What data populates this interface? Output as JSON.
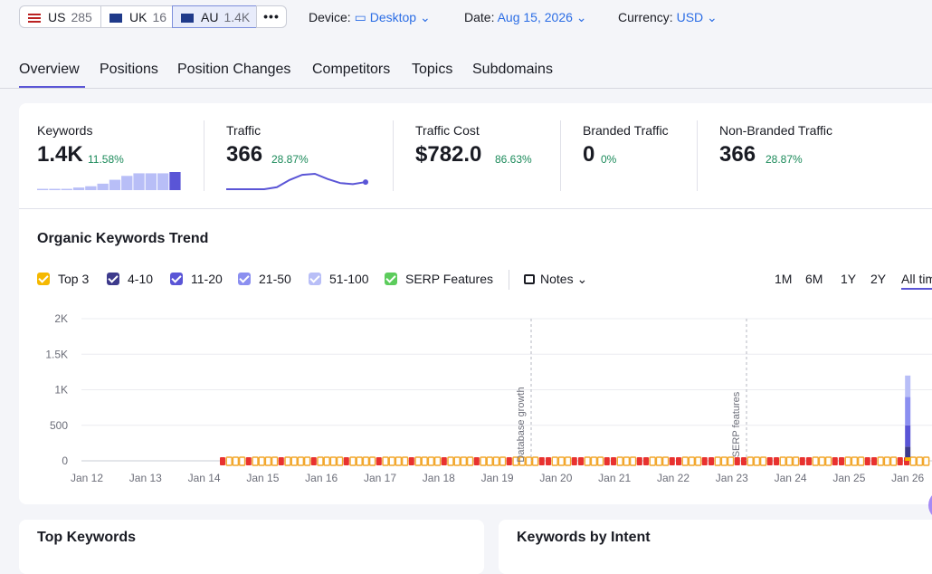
{
  "country_tabs": [
    {
      "code": "US",
      "count": "285"
    },
    {
      "code": "UK",
      "count": "16"
    },
    {
      "code": "AU",
      "count": "1.4K"
    }
  ],
  "filters": [
    {
      "label": "Device:",
      "value": "Desktop"
    },
    {
      "label": "Date:",
      "value": "Aug 15, 2026"
    },
    {
      "label": "Currency:",
      "value": "USD"
    }
  ],
  "nav_tabs": [
    "Overview",
    "Positions",
    "Position Changes",
    "Competitors",
    "Topics",
    "Subdomains"
  ],
  "metrics": [
    {
      "label": "Keywords",
      "value": "1.4K",
      "change": "11.58%",
      "sparkline": [
        1,
        1,
        1,
        2,
        3,
        5,
        8,
        11,
        13,
        13,
        13,
        14
      ]
    },
    {
      "label": "Traffic",
      "value": "366",
      "change": "28.87%",
      "sparkline": [
        0,
        0,
        0,
        0,
        2,
        9,
        14,
        15,
        10,
        6,
        5,
        7
      ]
    },
    {
      "label": "Traffic Cost",
      "value": "$782.0",
      "change": "86.63%"
    },
    {
      "label": "Branded Traffic",
      "value": "0",
      "change": "0%"
    },
    {
      "label": "Non-Branded Traffic",
      "value": "366",
      "change": "28.87%"
    }
  ],
  "chart_data": {
    "type": "stacked_bar",
    "title": "Organic Keywords Trend",
    "notes_label": "Notes",
    "ranges": [
      "1M",
      "6M",
      "1Y",
      "2Y",
      "All time"
    ],
    "legend_extra": {
      "name": "SERP Features",
      "color": "#5ccc5c"
    },
    "annotations": [
      "Database growth",
      "SERP features"
    ],
    "categories": [
      "Jan 12",
      "Jan 13",
      "Jan 14",
      "Jan 15",
      "Jan 16",
      "Jan 17",
      "Jan 18",
      "Jan 19",
      "Jan 20",
      "Jan 21",
      "Jan 22",
      "Jan 23",
      "Jan 24",
      "Jan 25",
      "Jan 26"
    ],
    "series": [
      {
        "name": "Top 3",
        "color": "#f5b800",
        "values": [
          0,
          0,
          0,
          0,
          0,
          0,
          0,
          0,
          0,
          0,
          0,
          0,
          0,
          0,
          50
        ]
      },
      {
        "name": "4-10",
        "color": "#3d3a8c",
        "values": [
          0,
          0,
          0,
          0,
          0,
          0,
          0,
          0,
          0,
          0,
          0,
          0,
          0,
          0,
          150
        ]
      },
      {
        "name": "11-20",
        "color": "#5a55d6",
        "values": [
          0,
          0,
          0,
          0,
          0,
          0,
          0,
          0,
          0,
          0,
          0,
          0,
          0,
          0,
          300
        ]
      },
      {
        "name": "21-50",
        "color": "#8b8ff0",
        "values": [
          0,
          0,
          0,
          0,
          0,
          0,
          0,
          0,
          0,
          0,
          0,
          0,
          0,
          0,
          400
        ]
      },
      {
        "name": "51-100",
        "color": "#b8bef7",
        "values": [
          0,
          0,
          0,
          0,
          0,
          0,
          0,
          0,
          0,
          0,
          0,
          0,
          0,
          0,
          300
        ]
      }
    ],
    "ylim": [
      0,
      2000
    ],
    "yticks": [
      0,
      500,
      {
        "value": 1000,
        "label": "1K"
      },
      {
        "value": 1500,
        "label": "1.5K"
      },
      {
        "value": 2000,
        "label": "2K"
      }
    ],
    "grid": true
  },
  "bottom_cards": [
    "Top Keywords",
    "Keywords by Intent"
  ]
}
